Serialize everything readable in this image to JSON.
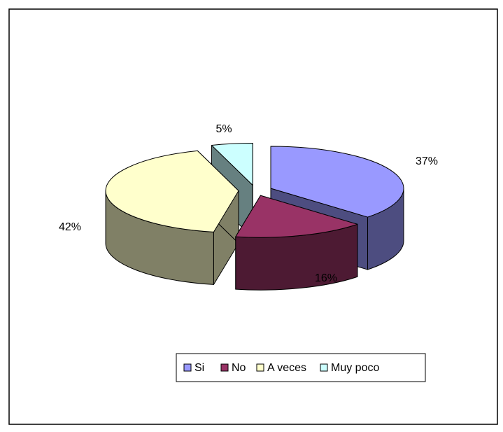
{
  "chart_data": {
    "type": "pie",
    "categories": [
      "Si",
      "No",
      "A veces",
      "Muy poco"
    ],
    "values": [
      37,
      16,
      42,
      5
    ],
    "value_labels": [
      "37%",
      "16%",
      "42%",
      "5%"
    ],
    "colors": [
      "#9999ff",
      "#993366",
      "#ffffcc",
      "#ccffff"
    ],
    "legend": "bottom"
  }
}
